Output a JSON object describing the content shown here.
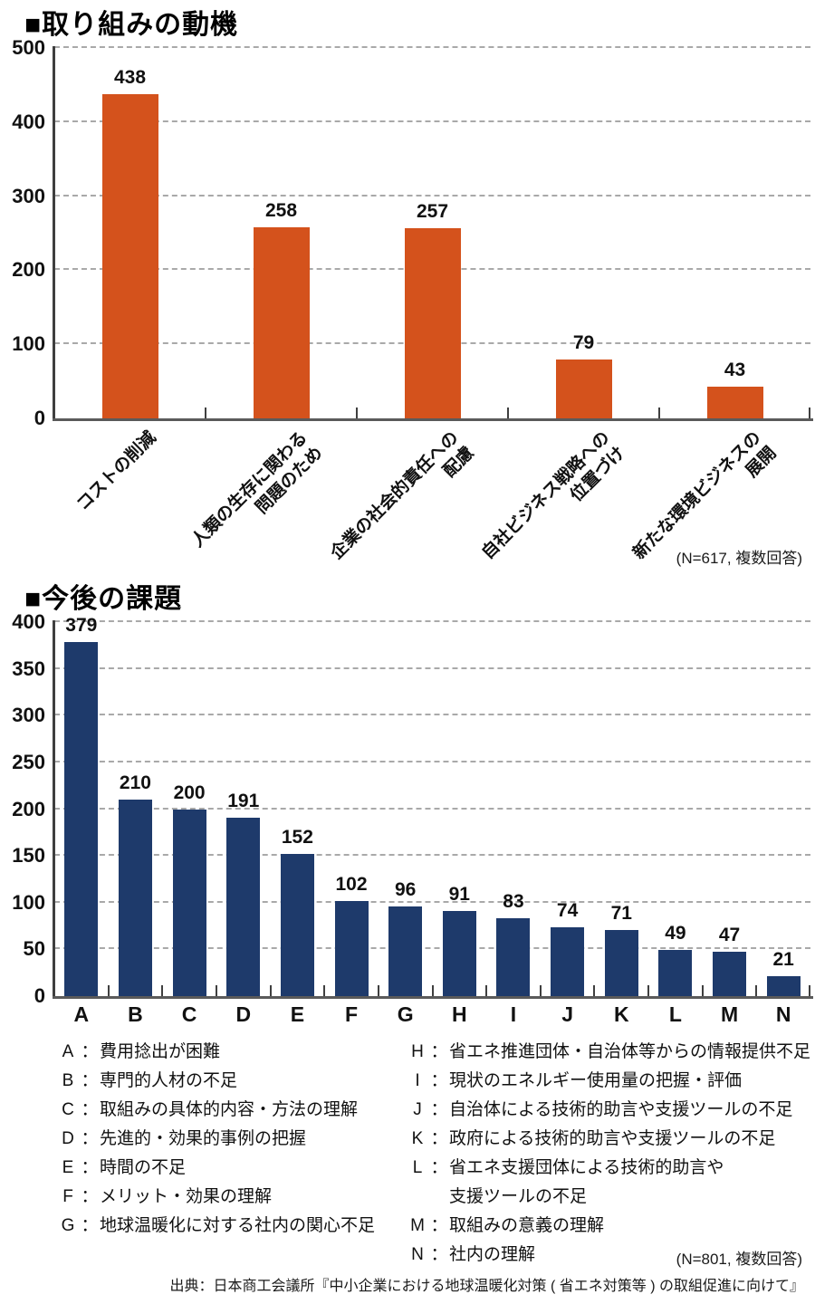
{
  "colors": {
    "chart1_bar": "#d4521c",
    "chart2_bar": "#1e3a6b",
    "gridline": "#a9a9a9",
    "axis": "#3f3f3f"
  },
  "chart_data": [
    {
      "type": "bar",
      "title": "■取り組みの動機",
      "categories": [
        "コストの削減",
        "人類の生存に関わる\n問題のため",
        "企業の社会的責任への\n配慮",
        "自社ビジネス戦略への\n位置づけ",
        "新たな環境ビジネスの\n展開"
      ],
      "values": [
        438,
        258,
        257,
        79,
        43
      ],
      "xlabel": "",
      "ylabel": "",
      "ylim": [
        0,
        500
      ],
      "ytick_step": 100,
      "grid": true,
      "note": "(N=617, 複数回答)",
      "bar_color": "#d4521c",
      "category_label_rotation_deg": 45
    },
    {
      "type": "bar",
      "title": "■今後の課題",
      "categories": [
        "A",
        "B",
        "C",
        "D",
        "E",
        "F",
        "G",
        "H",
        "I",
        "J",
        "K",
        "L",
        "M",
        "N"
      ],
      "values": [
        379,
        210,
        200,
        191,
        152,
        102,
        96,
        91,
        83,
        74,
        71,
        49,
        47,
        21
      ],
      "xlabel": "",
      "ylabel": "",
      "ylim": [
        0,
        400
      ],
      "ytick_step": 50,
      "grid": true,
      "note": "(N=801, 複数回答)",
      "bar_color": "#1e3a6b",
      "category_label_rotation_deg": 0
    }
  ],
  "legend": {
    "separator": "：",
    "left": [
      {
        "key": "A",
        "text": "費用捻出が困難"
      },
      {
        "key": "B",
        "text": "専門的人材の不足"
      },
      {
        "key": "C",
        "text": "取組みの具体的内容・方法の理解"
      },
      {
        "key": "D",
        "text": "先進的・効果的事例の把握"
      },
      {
        "key": "E",
        "text": "時間の不足"
      },
      {
        "key": "F",
        "text": "メリット・効果の理解"
      },
      {
        "key": "G",
        "text": "地球温暖化に対する社内の関心不足"
      }
    ],
    "right": [
      {
        "key": "H",
        "text": "省エネ推進団体・自治体等からの情報提供不足"
      },
      {
        "key": "I",
        "text": "現状のエネルギー使用量の把握・評価"
      },
      {
        "key": "J",
        "text": "自治体による技術的助言や支援ツールの不足"
      },
      {
        "key": "K",
        "text": "政府による技術的助言や支援ツールの不足"
      },
      {
        "key": "L",
        "text": "省エネ支援団体による技術的助言や\n支援ツールの不足"
      },
      {
        "key": "M",
        "text": "取組みの意義の理解"
      },
      {
        "key": "N",
        "text": "社内の理解"
      }
    ]
  },
  "source": "出典：日本商工会議所『中小企業における地球温暖化対策 ( 省エネ対策等 ) の取組促進に向けて』"
}
